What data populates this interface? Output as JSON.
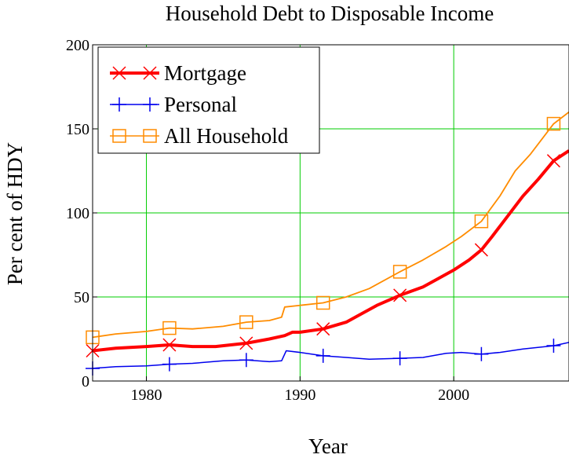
{
  "chart_data": {
    "type": "line",
    "title": "Household Debt to Disposable Income",
    "xlabel": "Year",
    "ylabel": "Per cent of HDY",
    "xlim": [
      1976.5,
      2007.5
    ],
    "ylim": [
      0,
      200
    ],
    "xticks": [
      1980,
      1990,
      2000
    ],
    "yticks": [
      0,
      50,
      100,
      150,
      200
    ],
    "grid": true,
    "grid_color": "#00cc00",
    "legend_position": "top-left",
    "series": [
      {
        "name": "Mortgage",
        "color": "#ff0000",
        "marker": "x-cross",
        "points": [
          [
            1976.5,
            18
          ],
          [
            1978,
            19.5
          ],
          [
            1980,
            20.5
          ],
          [
            1981.5,
            21.5
          ],
          [
            1983,
            20.5
          ],
          [
            1984.5,
            20.5
          ],
          [
            1986.5,
            22.5
          ],
          [
            1988,
            25
          ],
          [
            1989,
            27
          ],
          [
            1989.5,
            29
          ],
          [
            1990,
            29
          ],
          [
            1991.5,
            31
          ],
          [
            1993,
            35
          ],
          [
            1994,
            40
          ],
          [
            1995,
            45
          ],
          [
            1996.5,
            51
          ],
          [
            1998,
            56
          ],
          [
            1999,
            61
          ],
          [
            2000,
            66
          ],
          [
            2001,
            72
          ],
          [
            2001.8,
            78
          ],
          [
            2002.5,
            86
          ],
          [
            2003.5,
            98
          ],
          [
            2004.5,
            110
          ],
          [
            2005.5,
            120
          ],
          [
            2006.5,
            131
          ],
          [
            2007.5,
            137
          ]
        ],
        "marker_x": [
          1976.5,
          1981.5,
          1986.5,
          1991.5,
          1996.5,
          2001.8,
          2006.5
        ]
      },
      {
        "name": "Personal",
        "color": "#0000ee",
        "marker": "plus",
        "points": [
          [
            1976.5,
            7.5
          ],
          [
            1978,
            8.5
          ],
          [
            1980,
            9
          ],
          [
            1981.5,
            10
          ],
          [
            1983,
            10.5
          ],
          [
            1985,
            12
          ],
          [
            1986.5,
            12.5
          ],
          [
            1988,
            11.5
          ],
          [
            1988.8,
            12
          ],
          [
            1989.1,
            18
          ],
          [
            1990,
            17
          ],
          [
            1991.5,
            15
          ],
          [
            1993,
            14
          ],
          [
            1994.5,
            13
          ],
          [
            1996.5,
            13.5
          ],
          [
            1998,
            14
          ],
          [
            1999.5,
            16.5
          ],
          [
            2000.5,
            17
          ],
          [
            2001.8,
            16
          ],
          [
            2003,
            17
          ],
          [
            2004.5,
            19
          ],
          [
            2006.5,
            21
          ],
          [
            2007.5,
            23
          ]
        ],
        "marker_x": [
          1976.5,
          1981.5,
          1986.5,
          1991.5,
          1996.5,
          2001.8,
          2006.5
        ]
      },
      {
        "name": "All Household",
        "color": "#ff8c00",
        "marker": "square",
        "points": [
          [
            1976.5,
            26
          ],
          [
            1978,
            28
          ],
          [
            1980,
            29.5
          ],
          [
            1981.5,
            31.5
          ],
          [
            1983,
            31
          ],
          [
            1985,
            32.5
          ],
          [
            1986.5,
            35
          ],
          [
            1988,
            36
          ],
          [
            1988.8,
            38
          ],
          [
            1989,
            44
          ],
          [
            1990,
            45
          ],
          [
            1991.5,
            46.5
          ],
          [
            1993,
            50
          ],
          [
            1994.5,
            55
          ],
          [
            1996.5,
            65
          ],
          [
            1998,
            72
          ],
          [
            1999.5,
            80
          ],
          [
            2000.5,
            86
          ],
          [
            2001.8,
            95
          ],
          [
            2003,
            110
          ],
          [
            2004,
            125
          ],
          [
            2005,
            135
          ],
          [
            2006.5,
            153
          ],
          [
            2007.5,
            160
          ]
        ],
        "marker_x": [
          1976.5,
          1981.5,
          1986.5,
          1991.5,
          1996.5,
          2001.8,
          2006.5
        ]
      }
    ]
  }
}
